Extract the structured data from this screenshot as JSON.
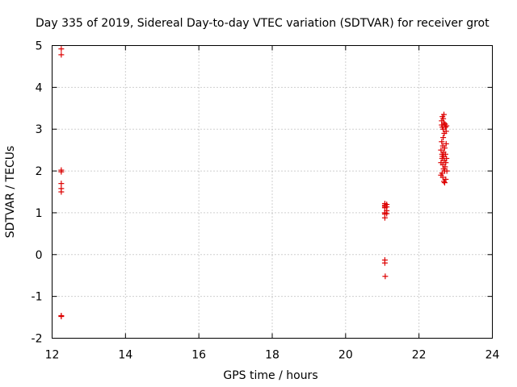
{
  "chart_data": {
    "type": "scatter",
    "title": "Day 335 of 2019, Sidereal Day-to-day VTEC variation (SDTVAR) for receiver grot",
    "xlabel": "GPS time / hours",
    "ylabel": "SDTVAR / TECUs",
    "xlim": [
      12,
      24
    ],
    "ylim": [
      -2,
      5
    ],
    "xticks": [
      "12",
      "14",
      "16",
      "18",
      "20",
      "22",
      "24"
    ],
    "yticks": [
      "-2",
      "-1",
      "0",
      "1",
      "2",
      "3",
      "4",
      "5"
    ],
    "grid": true,
    "marker": "+",
    "color": "#dd0000",
    "series": [
      {
        "name": "SDTVAR",
        "points": [
          [
            12.25,
            4.92
          ],
          [
            12.25,
            4.78
          ],
          [
            12.25,
            2.02
          ],
          [
            12.25,
            1.98
          ],
          [
            12.25,
            1.7
          ],
          [
            12.25,
            1.58
          ],
          [
            12.25,
            1.5
          ],
          [
            12.25,
            -1.46
          ],
          [
            12.25,
            -1.48
          ],
          [
            21.07,
            1.22
          ],
          [
            21.07,
            1.18
          ],
          [
            21.07,
            1.15
          ],
          [
            21.07,
            1.12
          ],
          [
            21.07,
            1.0
          ],
          [
            21.07,
            0.97
          ],
          [
            21.07,
            0.88
          ],
          [
            21.07,
            -0.13
          ],
          [
            21.07,
            -0.2
          ],
          [
            21.08,
            -0.52
          ],
          [
            21.12,
            1.2
          ],
          [
            21.12,
            1.14
          ],
          [
            21.12,
            1.05
          ],
          [
            21.12,
            0.98
          ],
          [
            22.6,
            2.2
          ],
          [
            22.6,
            1.9
          ],
          [
            22.6,
            2.5
          ],
          [
            22.62,
            3.1
          ],
          [
            22.62,
            3.2
          ],
          [
            22.63,
            2.4
          ],
          [
            22.63,
            1.95
          ],
          [
            22.63,
            2.3
          ],
          [
            22.64,
            3.3
          ],
          [
            22.64,
            3.05
          ],
          [
            22.65,
            2.15
          ],
          [
            22.65,
            2.6
          ],
          [
            22.65,
            1.85
          ],
          [
            22.66,
            3.25
          ],
          [
            22.66,
            3.0
          ],
          [
            22.67,
            2.45
          ],
          [
            22.67,
            2.05
          ],
          [
            22.67,
            2.35
          ],
          [
            22.68,
            1.75
          ],
          [
            22.68,
            3.15
          ],
          [
            22.69,
            2.9
          ],
          [
            22.69,
            2.25
          ],
          [
            22.7,
            2.55
          ],
          [
            22.7,
            1.72
          ],
          [
            22.71,
            3.12
          ],
          [
            22.71,
            2.1
          ],
          [
            22.72,
            2.4
          ],
          [
            22.72,
            3.05
          ],
          [
            22.73,
            1.8
          ],
          [
            22.73,
            2.2
          ],
          [
            22.74,
            2.95
          ],
          [
            22.74,
            2.65
          ],
          [
            22.75,
            2.3
          ],
          [
            22.75,
            3.08
          ],
          [
            22.76,
            2.0
          ],
          [
            22.62,
            2.7
          ],
          [
            22.66,
            2.8
          ],
          [
            22.7,
            2.0
          ],
          [
            22.64,
            2.35
          ],
          [
            22.68,
            3.35
          ]
        ]
      }
    ]
  }
}
